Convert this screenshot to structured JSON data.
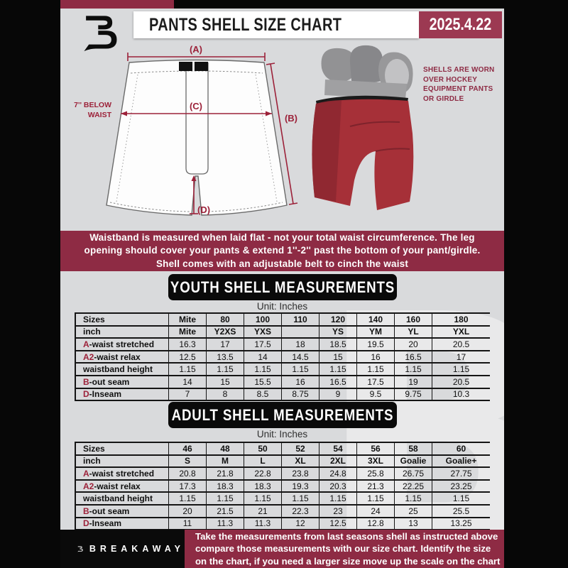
{
  "header": {
    "title": "PANTS SHELL SIZE CHART",
    "date": "2025.4.22"
  },
  "brand": {
    "name": "BREAKAWAY"
  },
  "diagram": {
    "label_a": "(A)",
    "label_b": "(B)",
    "label_c": "(C)",
    "label_d": "(D)",
    "below_waist_1": "7'' BELOW",
    "below_waist_2": "WAIST"
  },
  "photo": {
    "caption_lines": [
      "SHELLS ARE WORN",
      "OVER HOCKEY",
      "EQUIPMENT PANTS",
      "OR GIRDLE"
    ]
  },
  "note_banner": {
    "lines": [
      "Waistband is measured when laid flat - not your total waist circumference. The leg",
      "opening should cover your pants & extend 1''-2'' past the bottom of your pant/girdle.",
      "Shell comes with an adjustable belt to cinch the waist"
    ]
  },
  "sections": {
    "youth": {
      "title": "YOUTH SHELL MEASUREMENTS",
      "unit": "Unit: Inches",
      "rows": [
        {
          "prefix": "",
          "label": "Sizes",
          "header": true,
          "cells": [
            "Mite",
            "80",
            "100",
            "110",
            "120",
            "140",
            "160",
            "180"
          ]
        },
        {
          "prefix": "",
          "label": "inch",
          "header": true,
          "cells": [
            "Mite",
            "Y2XS",
            "YXS",
            "",
            "YS",
            "YM",
            "YL",
            "YXL"
          ]
        },
        {
          "prefix": "A",
          "label": "-waist stretched",
          "header": false,
          "cells": [
            "16.3",
            "17",
            "17.5",
            "18",
            "18.5",
            "19.5",
            "20",
            "20.5"
          ]
        },
        {
          "prefix": "A2",
          "label": "-waist relax",
          "header": false,
          "cells": [
            "12.5",
            "13.5",
            "14",
            "14.5",
            "15",
            "16",
            "16.5",
            "17"
          ]
        },
        {
          "prefix": "",
          "label": "waistband height",
          "header": false,
          "cells": [
            "1.15",
            "1.15",
            "1.15",
            "1.15",
            "1.15",
            "1.15",
            "1.15",
            "1.15"
          ]
        },
        {
          "prefix": "B",
          "label": "-out seam",
          "header": false,
          "cells": [
            "14",
            "15",
            "15.5",
            "16",
            "16.5",
            "17.5",
            "19",
            "20.5"
          ]
        },
        {
          "prefix": "D",
          "label": "-Inseam",
          "header": false,
          "cells": [
            "7",
            "8",
            "8.5",
            "8.75",
            "9",
            "9.5",
            "9.75",
            "10.3"
          ]
        }
      ]
    },
    "adult": {
      "title": "ADULT SHELL MEASUREMENTS",
      "unit": "Unit: Inches",
      "rows": [
        {
          "prefix": "",
          "label": "Sizes",
          "header": true,
          "cells": [
            "46",
            "48",
            "50",
            "52",
            "54",
            "56",
            "58",
            "60"
          ]
        },
        {
          "prefix": "",
          "label": "inch",
          "header": true,
          "cells": [
            "S",
            "M",
            "L",
            "XL",
            "2XL",
            "3XL",
            "Goalie",
            "Goalie+"
          ]
        },
        {
          "prefix": "A",
          "label": "-waist stretched",
          "header": false,
          "cells": [
            "20.8",
            "21.8",
            "22.8",
            "23.8",
            "24.8",
            "25.8",
            "26.75",
            "27.75"
          ]
        },
        {
          "prefix": "A2",
          "label": "-waist relax",
          "header": false,
          "cells": [
            "17.3",
            "18.3",
            "18.3",
            "19.3",
            "20.3",
            "21.3",
            "22.25",
            "23.25"
          ]
        },
        {
          "prefix": "",
          "label": "waistband height",
          "header": false,
          "cells": [
            "1.15",
            "1.15",
            "1.15",
            "1.15",
            "1.15",
            "1.15",
            "1.15",
            "1.15"
          ]
        },
        {
          "prefix": "B",
          "label": "-out seam",
          "header": false,
          "cells": [
            "20",
            "21.5",
            "21",
            "22.3",
            "23",
            "24",
            "25",
            "25.5"
          ]
        },
        {
          "prefix": "D",
          "label": "-Inseam",
          "header": false,
          "cells": [
            "11",
            "11.3",
            "11.3",
            "12",
            "12.5",
            "12.8",
            "13",
            "13.25"
          ]
        }
      ]
    }
  },
  "footer": {
    "lines": [
      "Take the measurements from last seasons shell as instructed above",
      "compare those measurements  with our size chart. Identify the size",
      "on the chart, if you need a larger size move up the scale on the chart"
    ]
  },
  "colors": {
    "maroon": "#8e2b44",
    "maroon_badge": "#9c3952",
    "diagram_accent": "#9c2139",
    "background": "#d9dadc",
    "pill_black": "#0a0a0a"
  },
  "watermark_letter": "B"
}
